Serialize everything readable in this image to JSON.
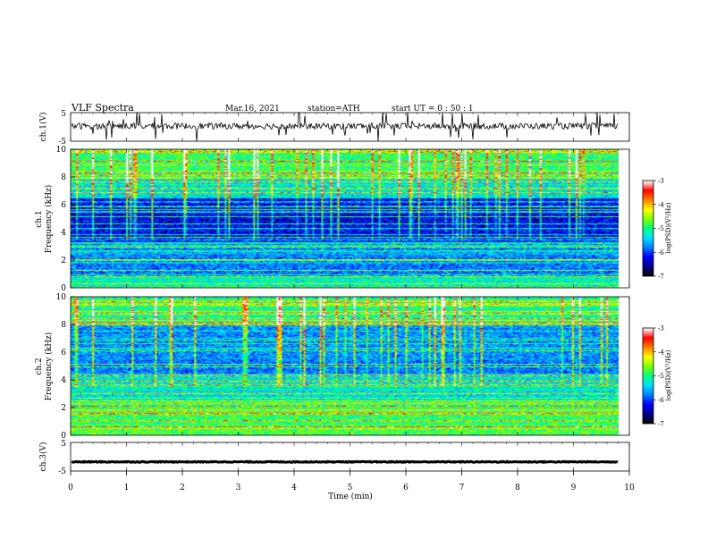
{
  "header": {
    "title": "VLF  Spectra",
    "date": "Mar.16, 2021",
    "station": "station=ATH",
    "start": "start  UT  =    0  : 50 : 1"
  },
  "chart_data": [
    {
      "type": "line",
      "id": "ch1",
      "ylabel": "ch.1(V)",
      "ylim": [
        -5,
        5
      ],
      "yticks": [
        "5",
        "-5"
      ],
      "xlim": [
        0,
        10
      ],
      "series": [
        {
          "level": 0.3,
          "noise": "high",
          "spikes": "frequent"
        }
      ]
    },
    {
      "type": "heatmap",
      "id": "ch1-spectrogram",
      "ylabel_line1": "ch.1",
      "ylabel_line2": "Frequency  (kHz)",
      "ylim": [
        0,
        10
      ],
      "yticks": [
        "0",
        "2",
        "4",
        "6",
        "8",
        "10"
      ],
      "xlim": [
        0,
        9.8
      ],
      "colorbar": {
        "label": "log(PSD)(V²/Hz)",
        "ticks": [
          "-3",
          "-4",
          "-5",
          "-6",
          "-7"
        ],
        "range": [
          -7,
          -3
        ]
      }
    },
    {
      "type": "heatmap",
      "id": "ch2-spectrogram",
      "ylabel_line1": "ch.2",
      "ylabel_line2": "Frequency  (kHz)",
      "ylim": [
        0,
        10
      ],
      "yticks": [
        "0",
        "2",
        "4",
        "6",
        "8",
        "10"
      ],
      "xlim": [
        0,
        9.8
      ],
      "colorbar": {
        "label": "log(PSD)(V²/Hz)",
        "ticks": [
          "-3",
          "-4",
          "-5",
          "-6",
          "-7"
        ],
        "range": [
          -7,
          -3
        ]
      }
    },
    {
      "type": "line",
      "id": "ch3",
      "ylabel": "ch.3(V)",
      "ylim": [
        -5,
        5
      ],
      "yticks": [
        "5",
        "-5"
      ],
      "xlim": [
        0,
        10
      ],
      "series": [
        {
          "level": -1.8,
          "noise": "low"
        }
      ]
    }
  ],
  "x_axis": {
    "label": "Time  (min)",
    "ticks": [
      "0",
      "1",
      "2",
      "3",
      "4",
      "5",
      "6",
      "7",
      "8",
      "9",
      "10"
    ]
  },
  "colormap": [
    "#000000",
    "#00008b",
    "#0000ff",
    "#0080ff",
    "#00e0ff",
    "#00ff80",
    "#80ff00",
    "#ffff00",
    "#ff8000",
    "#ff0000",
    "#ffffff"
  ]
}
